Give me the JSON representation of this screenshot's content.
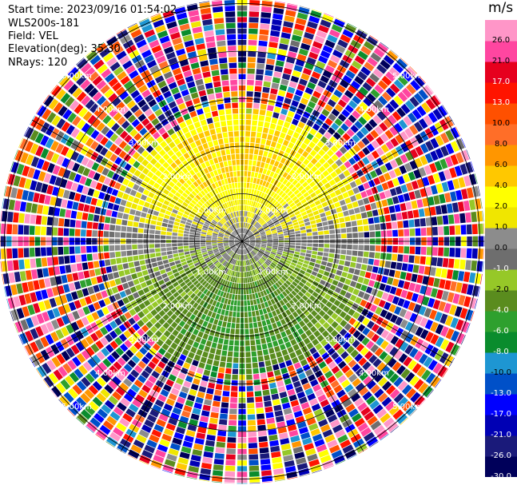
{
  "header": {
    "start_time": "Start time: 2023/09/16 01:54:02",
    "instrument": "WLS200s-181",
    "field": "Field: VEL",
    "elevation": "Elevation(deg): 35.30",
    "nrays": "NRays: 120"
  },
  "chart_data": {
    "type": "ppi-heatmap",
    "title": "",
    "field": "VEL",
    "units": "m/s",
    "n_rays": 120,
    "range_rings_km": [
      1,
      2,
      3,
      4,
      5
    ],
    "ring_labels": [
      "1.00km",
      "2.00km",
      "3.00km",
      "4.00km",
      "5.00km"
    ],
    "max_range_km": 5.1,
    "clean_range_km": 2.6,
    "colorbar": {
      "bounds": [
        -30,
        -26,
        -21,
        -17,
        -13,
        -10,
        -8,
        -6,
        -4,
        -2,
        -1,
        0,
        1,
        2,
        4,
        6,
        8,
        10,
        13,
        17,
        21,
        26,
        30
      ],
      "tick_labels": [
        "-30.0",
        "-26.0",
        "-21.0",
        "-17.0",
        "-13.0",
        "-10.0",
        "-8.0",
        "-6.0",
        "-4.0",
        "-2.0",
        "-1.0",
        "0.0",
        "1.0",
        "2.0",
        "4.0",
        "6.0",
        "8.0",
        "10.0",
        "13.0",
        "17.0",
        "21.0",
        "26.0"
      ],
      "colors": [
        "#00005a",
        "#1a1a7a",
        "#0000b4",
        "#0000ff",
        "#0050c8",
        "#1e96d2",
        "#0a8c2d",
        "#2ea02e",
        "#5a8c1e",
        "#96c828",
        "#6e6e6e",
        "#8c8c8c",
        "#f0e600",
        "#ffff00",
        "#ffc800",
        "#ff9600",
        "#ff6e28",
        "#ff5000",
        "#ff1400",
        "#e6001e",
        "#ff46a0",
        "#ff96c8"
      ]
    },
    "pattern": {
      "description_values": "Near-field: positive velocities (yellow/orange 2 to 6 m/s) toward north, negative velocities (green -2 to -4 m/s) toward south, near-zero grey elsewhere; far-field beyond ~2.6 km is noisy speckle across the full velocity range.",
      "north_sector_deg": [
        270,
        450
      ],
      "peak_positive": 4,
      "peak_negative": -4
    }
  }
}
